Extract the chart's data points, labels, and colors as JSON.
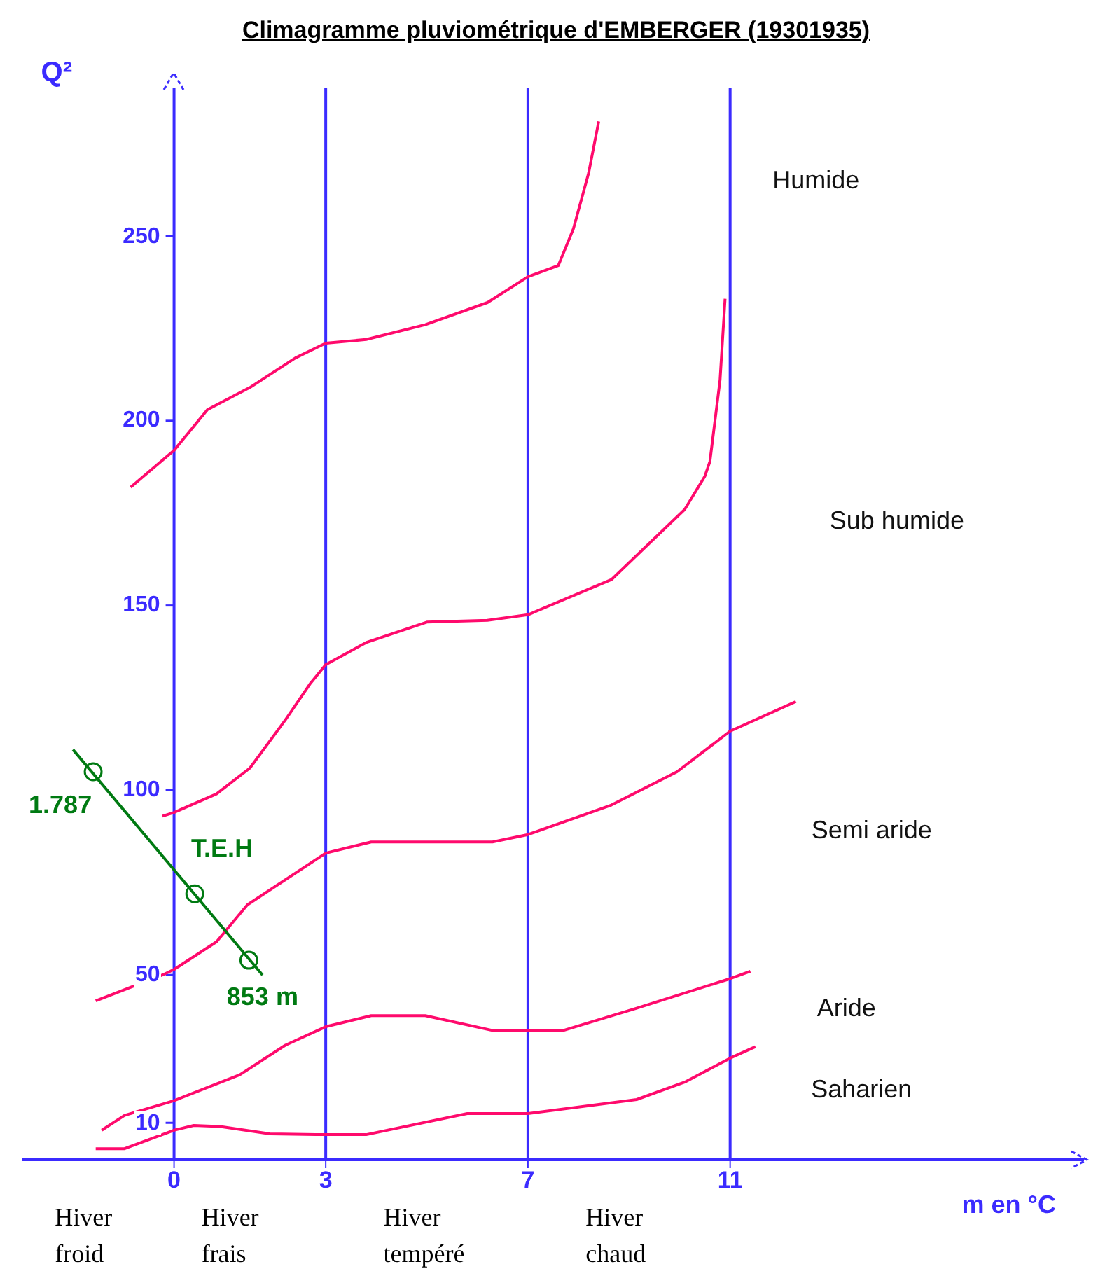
{
  "chart_data": {
    "type": "line",
    "title": "Climagramme pluviométrique d'EMBERGER (19301935)",
    "xlabel": "m en °C",
    "ylabel": "Q²",
    "xlim": [
      -3,
      18
    ],
    "ylim": [
      0,
      290
    ],
    "xticks": [
      0,
      3,
      7,
      11
    ],
    "yticks": [
      10,
      50,
      100,
      150,
      200,
      250
    ],
    "grid": "x",
    "marker": "none",
    "line_style": "solid",
    "series": [
      {
        "color": "#ff0a6c",
        "x": [
          -0.86,
          0,
          0.66,
          1.5,
          2.4,
          3,
          3.8,
          4.97,
          6.2,
          7,
          7.6,
          7.9,
          8.2,
          8.4
        ],
        "values": [
          182,
          192,
          203,
          209,
          217,
          221,
          222,
          226,
          232,
          239,
          242,
          252,
          267,
          281
        ]
      },
      {
        "color": "#ff0a6c",
        "x": [
          -0.23,
          0,
          0.84,
          1.5,
          2.2,
          2.7,
          3,
          3.8,
          5,
          6.2,
          7,
          8.65,
          10.1,
          10.5,
          10.6,
          10.8,
          10.9
        ],
        "values": [
          93,
          94,
          99,
          106,
          119,
          129,
          134,
          140,
          145.5,
          146,
          147.5,
          157,
          176,
          185,
          189,
          211,
          233
        ]
      },
      {
        "color": "#ff0a6c",
        "x": [
          -1.55,
          -0.23,
          0,
          0.84,
          1.45,
          3,
          3.9,
          6.3,
          7,
          8.65,
          9.95,
          11,
          12.3
        ],
        "values": [
          43,
          50,
          51.5,
          59,
          69,
          83,
          86,
          86,
          88,
          96,
          105,
          116,
          124
        ]
      },
      {
        "color": "#ff0a6c",
        "x": [
          -1.43,
          -0.98,
          0,
          1.3,
          2.2,
          3,
          3.9,
          4.97,
          6.3,
          7.7,
          9.15,
          11,
          11.4
        ],
        "values": [
          8,
          12,
          16,
          23,
          31,
          36,
          39,
          39,
          35,
          35,
          41,
          49,
          51
        ]
      },
      {
        "color": "#ff0a6c",
        "x": [
          -1.55,
          -0.98,
          0,
          0.39,
          0.91,
          1.9,
          2.8,
          3.8,
          5.8,
          7,
          9.15,
          10.1,
          11,
          11.5
        ],
        "values": [
          3,
          3,
          8,
          9.3,
          9,
          7,
          6.8,
          6.8,
          12.5,
          12.5,
          16.3,
          21,
          27.5,
          30.6
        ]
      },
      {
        "color": "#007a12",
        "x": [
          -2,
          1.75
        ],
        "values": [
          111,
          50
        ]
      },
      {
        "type": "scatter",
        "marker": "circle",
        "color": "#007a12",
        "x": [
          -1.6,
          0.41,
          1.48
        ],
        "values": [
          105,
          72,
          54
        ]
      }
    ],
    "annotations": [
      "Humide",
      "Sub humide",
      "Semi aride",
      "Aride",
      "Saharien",
      "Hiver froid",
      "Hiver frais",
      "Hiver tempéré",
      "Hiver chaud",
      "1.787",
      "T.E.H",
      "853 m"
    ]
  }
}
